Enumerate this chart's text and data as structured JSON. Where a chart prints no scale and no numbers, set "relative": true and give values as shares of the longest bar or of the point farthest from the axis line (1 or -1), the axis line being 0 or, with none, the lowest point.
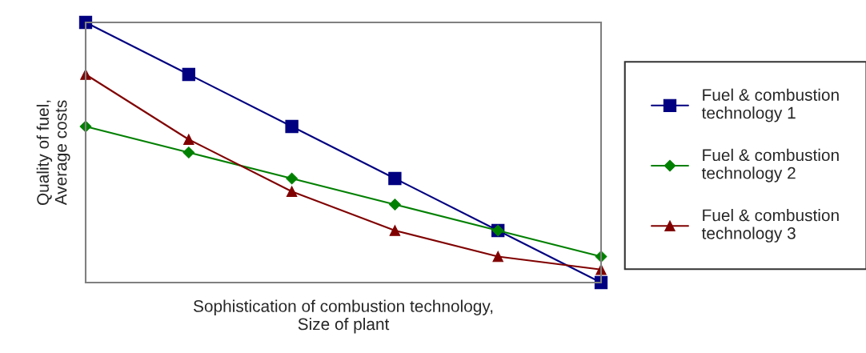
{
  "chart_data": {
    "type": "line",
    "xlabel": "Sophistication of combustion technology,\nSize of plant",
    "ylabel": "Quality of fuel,\nAverage costs",
    "relative": true,
    "categories": [
      null,
      null,
      null,
      null,
      null,
      null
    ],
    "series": [
      {
        "name": "Fuel & combustion\ntechnology 1",
        "color": "#000080",
        "marker": "square",
        "values": [
          1,
          0.8,
          0.6,
          0.4,
          0.2,
          0
        ]
      },
      {
        "name": "Fuel & combustion\ntechnology 2",
        "color": "#008000",
        "marker": "diamond",
        "values": [
          0.6,
          0.5,
          0.4,
          0.3,
          0.2,
          0.1
        ]
      },
      {
        "name": "Fuel & combustion\ntechnology 3",
        "color": "#800000",
        "marker": "triangle",
        "values": [
          0.8,
          0.55,
          0.35,
          0.2,
          0.1,
          0.05
        ]
      }
    ],
    "legend": "right",
    "grid": false,
    "line_style": "solid"
  }
}
